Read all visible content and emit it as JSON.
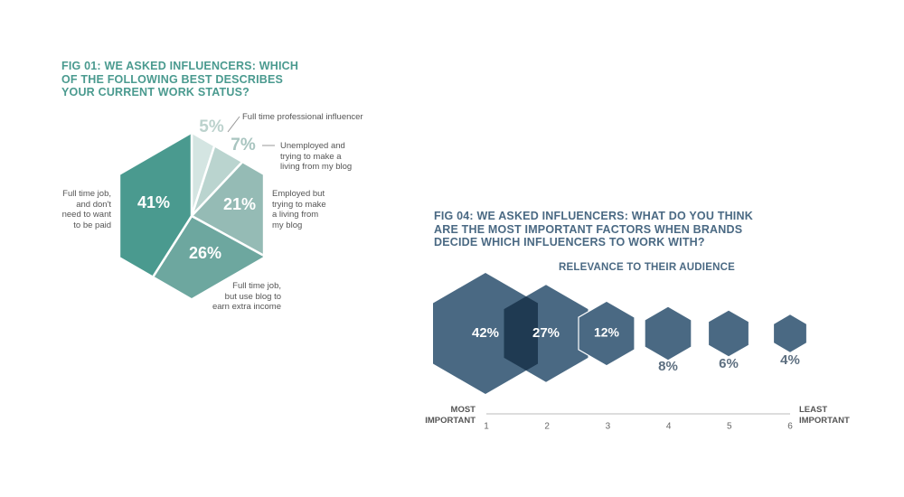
{
  "chart_data": [
    {
      "type": "pie",
      "shape": "hexagon",
      "title": "FIG 01: WE ASKED INFLUENCERS: WHICH\nOF THE FOLLOWING BEST DESCRIBES\nYOUR CURRENT WORK STATUS?",
      "slices": [
        {
          "label": "Full time professional influencer",
          "value": 5,
          "display": "5%",
          "color": "#d4e5e2",
          "text_color": "#bcd2cd"
        },
        {
          "label": "Unemployed and\ntrying to make a\nliving from my blog",
          "value": 7,
          "display": "7%",
          "color": "#bad4cf",
          "text_color": "#a9c5c0"
        },
        {
          "label": "Employed but\ntrying to make\na living from\nmy blog",
          "value": 21,
          "display": "21%",
          "color": "#95bbb5",
          "text_color": "#ffffff"
        },
        {
          "label": "Full time job,\nbut use blog to\nearn extra income",
          "value": 26,
          "display": "26%",
          "color": "#6da79f",
          "text_color": "#ffffff"
        },
        {
          "label": "Full time job,\nand don't\nneed to want\nto be paid",
          "value": 41,
          "display": "41%",
          "color": "#4a9a8f",
          "text_color": "#ffffff"
        }
      ]
    },
    {
      "type": "bubble",
      "title": "FIG 04: WE ASKED INFLUENCERS: WHAT DO YOU THINK\nARE THE MOST IMPORTANT FACTORS WHEN BRANDS\nDECIDE WHICH INFLUENCERS TO WORK WITH?",
      "subtitle": "RELEVANCE TO THEIR AUDIENCE",
      "x": [
        1,
        2,
        3,
        4,
        5,
        6
      ],
      "values": [
        42,
        27,
        12,
        8,
        6,
        4
      ],
      "labels": [
        "42%",
        "27%",
        "12%",
        "8%",
        "6%",
        "4%"
      ],
      "xlim": [
        1,
        6
      ],
      "axis_left_label": "MOST\nIMPORTANT",
      "axis_right_label": "LEAST\nIMPORTANT",
      "color": "#4a6983",
      "overlap_color": "#1f3a52"
    }
  ]
}
